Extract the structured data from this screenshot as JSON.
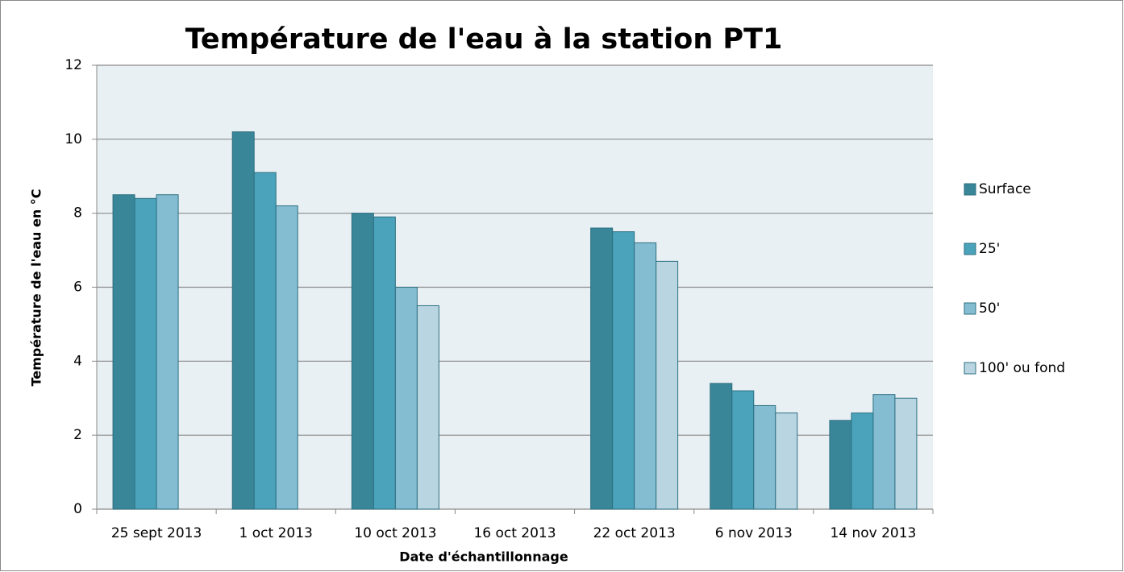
{
  "chart_data": {
    "type": "bar",
    "title": "Température de l'eau à la station PT1",
    "x_label": "Date d'échantillonnage",
    "y_label": "Température de l'eau en °C",
    "categories": [
      "25 sept 2013",
      "1 oct 2013",
      "10 oct 2013",
      "16 oct 2013",
      "22 oct 2013",
      "6 nov 2013",
      "14 nov 2013"
    ],
    "series": [
      {
        "name": "Surface",
        "color": "#3a8699",
        "values": [
          8.5,
          10.2,
          8.0,
          null,
          7.6,
          3.4,
          2.4
        ]
      },
      {
        "name": "25'",
        "color": "#4aa3bb",
        "values": [
          8.4,
          9.1,
          7.9,
          null,
          7.5,
          3.2,
          2.6
        ]
      },
      {
        "name": "50'",
        "color": "#84bdd2",
        "values": [
          8.5,
          8.2,
          6.0,
          null,
          7.2,
          2.8,
          3.1
        ]
      },
      {
        "name": "100' ou fond",
        "color": "#b9d5e1",
        "values": [
          null,
          null,
          5.5,
          null,
          6.7,
          2.6,
          3.0
        ]
      }
    ],
    "ylim": [
      0,
      12
    ],
    "yticks": [
      0,
      2,
      4,
      6,
      8,
      10,
      12
    ],
    "grid": true,
    "legend": "right"
  }
}
